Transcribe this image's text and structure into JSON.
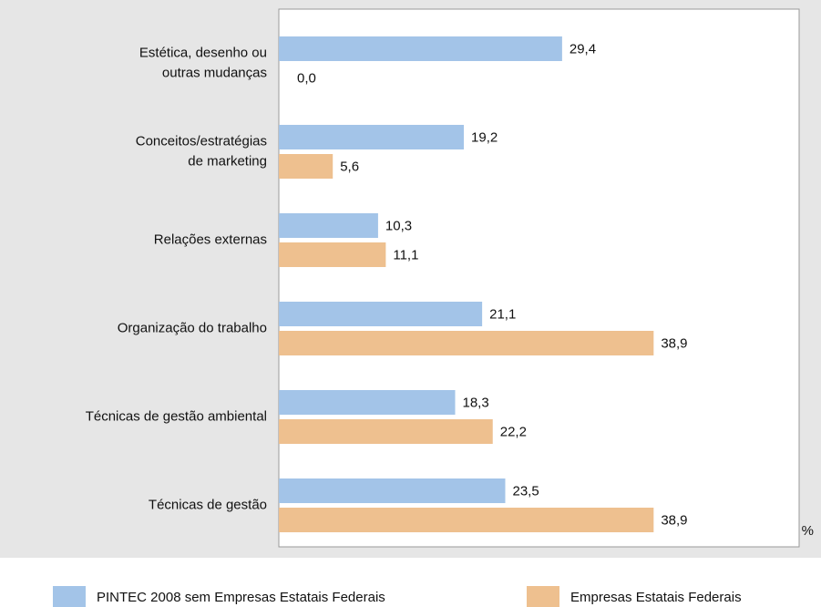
{
  "chart_data": {
    "type": "barh",
    "categories": [
      [
        "Estética, desenho ou",
        "outras mudanças"
      ],
      [
        "Conceitos/estratégias",
        "de marketing"
      ],
      [
        "Relações externas"
      ],
      [
        "Organização do trabalho"
      ],
      [
        "Técnicas de gestão ambiental"
      ],
      [
        "Técnicas de gestão"
      ]
    ],
    "series": [
      {
        "name": "PINTEC 2008 sem Empresas Estatais Federais",
        "color": "#a3c4e8",
        "values": [
          29.4,
          19.2,
          10.3,
          21.1,
          18.3,
          23.5
        ],
        "value_labels": [
          "29,4",
          "19,2",
          "10,3",
          "21,1",
          "18,3",
          "23,5"
        ]
      },
      {
        "name": "Empresas Estatais Federais",
        "color": "#eec08f",
        "values": [
          0.0,
          5.6,
          11.1,
          38.9,
          22.2,
          38.9
        ],
        "value_labels": [
          "0,0",
          "5,6",
          "11,1",
          "38,9",
          "22,2",
          "38,9"
        ]
      }
    ],
    "x_label": "%",
    "xlim": [
      0,
      54
    ]
  }
}
